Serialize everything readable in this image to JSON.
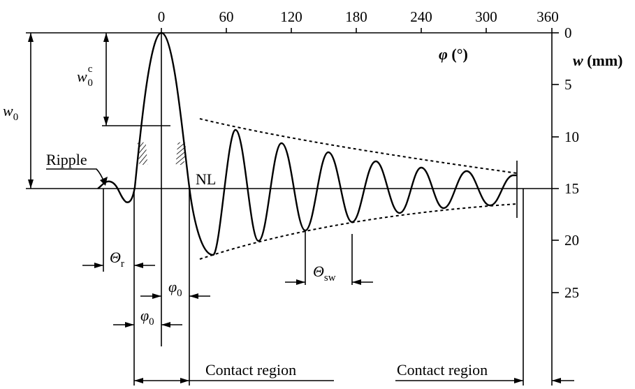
{
  "axes": {
    "phi": {
      "label_symbol": "φ",
      "label_unit": "(°)",
      "ticks": [
        "0",
        "60",
        "120",
        "180",
        "240",
        "300",
        "360"
      ]
    },
    "w": {
      "label_symbol": "w",
      "label_unit": "(mm)",
      "ticks": [
        "0",
        "5",
        "10",
        "15",
        "20",
        "25"
      ]
    }
  },
  "labels": {
    "w0": "w",
    "w0_sub": "0",
    "w0c": "w",
    "w0c_sup": "c",
    "w0c_sub": "0",
    "ripple": "Ripple",
    "nl": "NL",
    "theta_r": "Θ",
    "theta_r_sub": "r",
    "theta_sw": "Θ",
    "theta_sw_sub": "sw",
    "phi0_upper": "φ",
    "phi0_upper_sub": "0",
    "phi0_lower": "φ",
    "phi0_lower_sub": "0",
    "contact_region_left": "Contact region",
    "contact_region_right": "Contact region"
  }
}
